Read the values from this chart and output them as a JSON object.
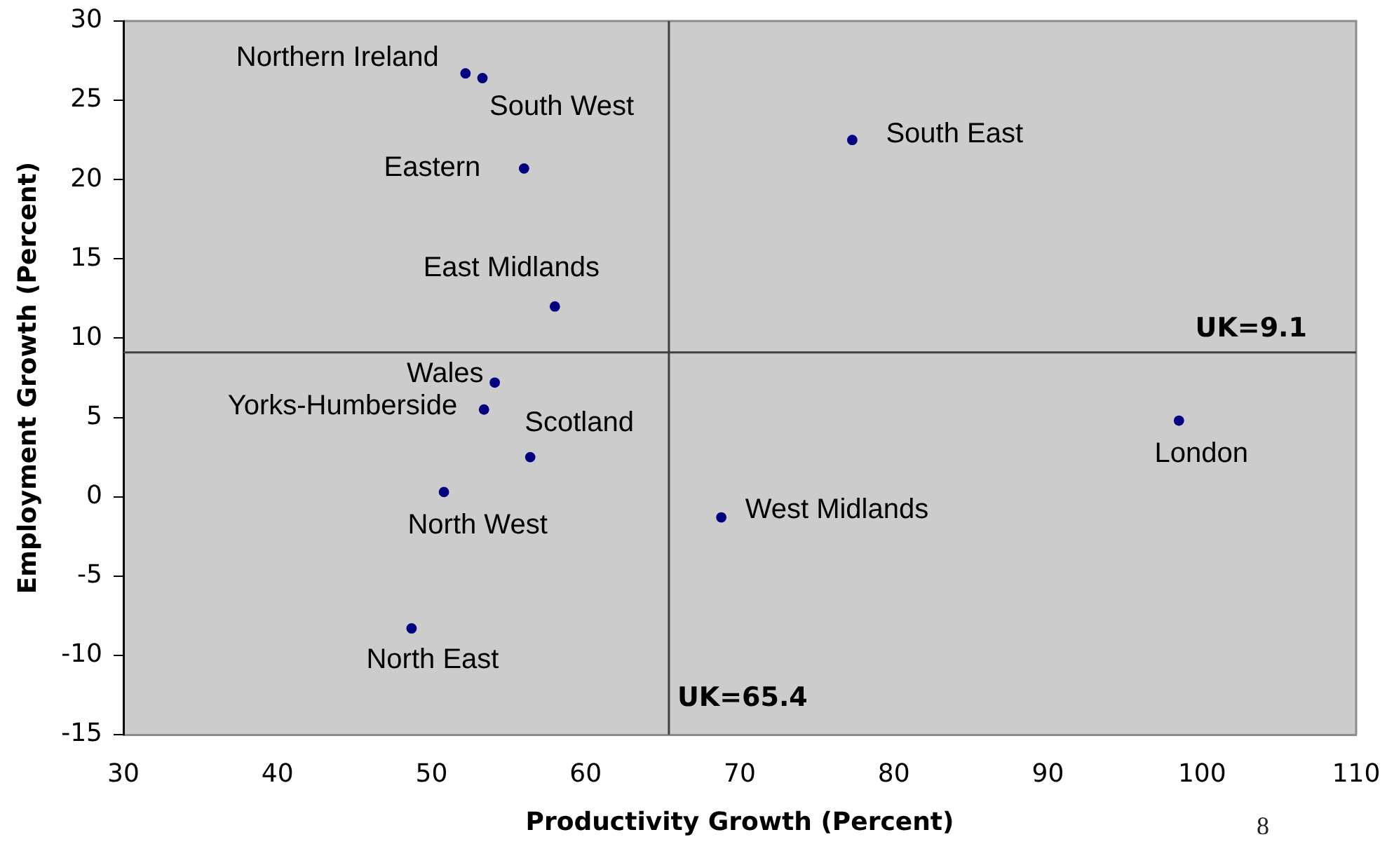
{
  "chart_data": {
    "type": "scatter",
    "xlabel": "Productivity Growth (Percent)",
    "ylabel": "Employment Growth (Percent)",
    "xlim": [
      30,
      110
    ],
    "xticks": [
      30,
      40,
      50,
      60,
      70,
      80,
      90,
      100,
      110
    ],
    "ylim": [
      -15,
      30
    ],
    "yticks": [
      -15,
      -10,
      -5,
      0,
      5,
      10,
      15,
      20,
      25,
      30
    ],
    "marker": "circle",
    "series": [
      {
        "name": "Northern Ireland",
        "color": "#000080",
        "x": [
          52.2
        ],
        "values": [
          26.7
        ]
      },
      {
        "name": "South West",
        "color": "#000080",
        "x": [
          53.3
        ],
        "values": [
          26.4
        ]
      },
      {
        "name": "Eastern",
        "color": "#000080",
        "x": [
          56.0
        ],
        "values": [
          20.7
        ]
      },
      {
        "name": "East Midlands",
        "color": "#000080",
        "x": [
          58.0
        ],
        "values": [
          12.0
        ]
      },
      {
        "name": "Wales",
        "color": "#000080",
        "x": [
          54.1
        ],
        "values": [
          7.2
        ]
      },
      {
        "name": "Yorks-Humberside",
        "color": "#000080",
        "x": [
          53.4
        ],
        "values": [
          5.5
        ]
      },
      {
        "name": "Scotland",
        "color": "#000080",
        "x": [
          56.4
        ],
        "values": [
          2.5
        ]
      },
      {
        "name": "North West",
        "color": "#000080",
        "x": [
          50.8
        ],
        "values": [
          0.3
        ]
      },
      {
        "name": "North East",
        "color": "#000080",
        "x": [
          48.7
        ],
        "values": [
          -8.3
        ]
      },
      {
        "name": "West Midlands",
        "color": "#000080",
        "x": [
          68.8
        ],
        "values": [
          -1.3
        ]
      },
      {
        "name": "London",
        "color": "#000080",
        "x": [
          98.5
        ],
        "values": [
          4.8
        ]
      },
      {
        "name": "South East",
        "color": "#000080",
        "x": [
          77.3
        ],
        "values": [
          22.5
        ]
      }
    ],
    "ref_lines": [
      {
        "axis": "x",
        "value": 65.4,
        "label": "UK=65.4",
        "color": "#404040"
      },
      {
        "axis": "y",
        "value": 9.1,
        "label": "UK=9.1",
        "color": "#404040"
      }
    ],
    "annotations": [
      "8"
    ]
  }
}
